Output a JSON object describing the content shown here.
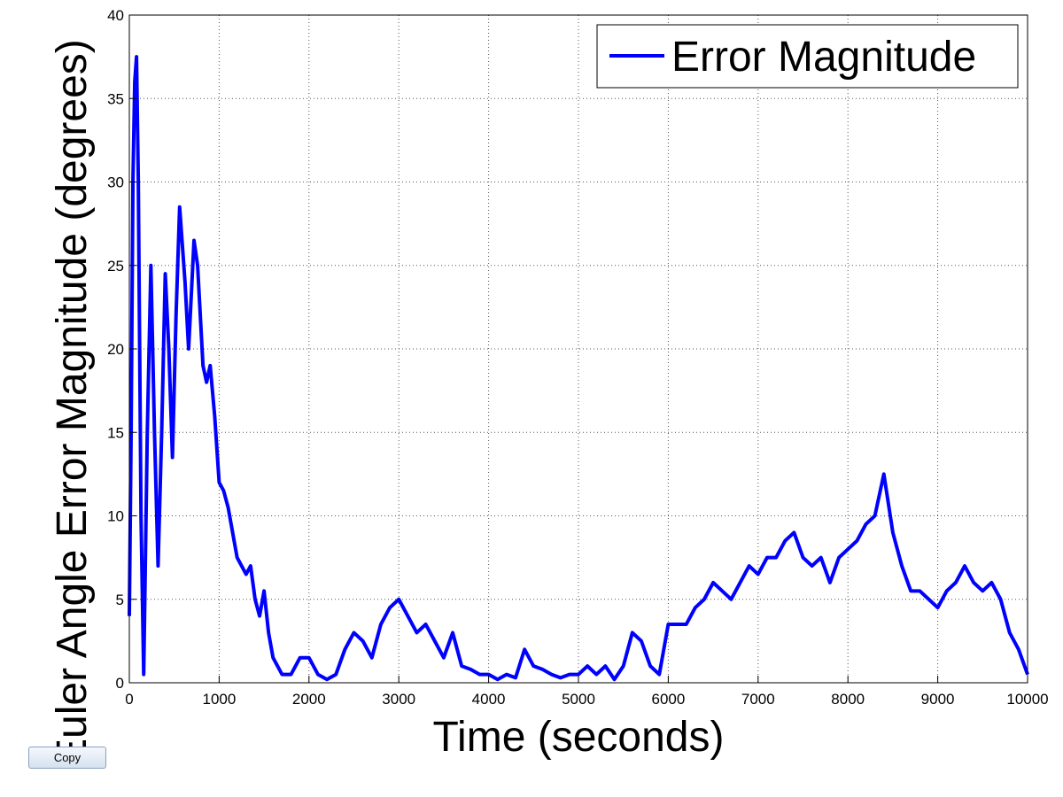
{
  "chart_data": {
    "type": "line",
    "xlabel": "Time (seconds)",
    "ylabel": "Euler Angle Error Magnitude (degrees)",
    "x": [
      0,
      20,
      40,
      60,
      80,
      100,
      130,
      160,
      200,
      240,
      280,
      320,
      360,
      400,
      440,
      480,
      520,
      560,
      620,
      660,
      720,
      760,
      820,
      860,
      900,
      950,
      1000,
      1050,
      1100,
      1150,
      1200,
      1300,
      1350,
      1400,
      1450,
      1500,
      1550,
      1600,
      1700,
      1800,
      1900,
      2000,
      2100,
      2200,
      2300,
      2400,
      2500,
      2600,
      2700,
      2800,
      2900,
      3000,
      3100,
      3200,
      3300,
      3400,
      3500,
      3600,
      3700,
      3800,
      3900,
      4000,
      4100,
      4200,
      4300,
      4400,
      4500,
      4600,
      4700,
      4800,
      4900,
      5000,
      5100,
      5200,
      5300,
      5400,
      5500,
      5600,
      5700,
      5800,
      5900,
      6000,
      6100,
      6200,
      6300,
      6400,
      6500,
      6600,
      6700,
      6800,
      6900,
      7000,
      7100,
      7200,
      7300,
      7400,
      7500,
      7600,
      7700,
      7800,
      7900,
      8000,
      8100,
      8200,
      8300,
      8400,
      8500,
      8600,
      8700,
      8800,
      8900,
      9000,
      9100,
      9200,
      9300,
      9400,
      9500,
      9600,
      9700,
      9800,
      9900,
      10000
    ],
    "series": [
      {
        "name": "Error Magnitude",
        "color": "#0000ff",
        "values": [
          4,
          15,
          30,
          36,
          37.5,
          30,
          10,
          0.5,
          15,
          25,
          15,
          7,
          15,
          24.5,
          20,
          13.5,
          22,
          28.5,
          24,
          20,
          26.5,
          25,
          19,
          18,
          19,
          16,
          12,
          11.5,
          10.5,
          9,
          7.5,
          6.5,
          7,
          5,
          4,
          5.5,
          3,
          1.5,
          0.5,
          0.5,
          1.5,
          1.5,
          0.5,
          0.2,
          0.5,
          2,
          3,
          2.5,
          1.5,
          3.5,
          4.5,
          5,
          4,
          3,
          3.5,
          2.5,
          1.5,
          3,
          1,
          0.8,
          0.5,
          0.5,
          0.2,
          0.5,
          0.3,
          2,
          1,
          0.8,
          0.5,
          0.3,
          0.5,
          0.5,
          1,
          0.5,
          1,
          0.2,
          1,
          3,
          2.5,
          1,
          0.5,
          3.5,
          3.5,
          3.5,
          4.5,
          5,
          6,
          5.5,
          5,
          6,
          7,
          6.5,
          7.5,
          7.5,
          8.5,
          9,
          7.5,
          7,
          7.5,
          6,
          7.5,
          8,
          8.5,
          9.5,
          10,
          12.5,
          9,
          7,
          5.5,
          5.5,
          5,
          4.5,
          5.5,
          6,
          7,
          6,
          5.5,
          6,
          5,
          3,
          2,
          0.5
        ]
      }
    ],
    "xlim": [
      0,
      10000
    ],
    "ylim": [
      0,
      40
    ],
    "xticks": [
      0,
      1000,
      2000,
      3000,
      4000,
      5000,
      6000,
      7000,
      8000,
      9000,
      10000
    ],
    "yticks": [
      0,
      5,
      10,
      15,
      20,
      25,
      30,
      35,
      40
    ],
    "grid": true,
    "legend": "upper right"
  },
  "button": {
    "label": "Copy"
  }
}
